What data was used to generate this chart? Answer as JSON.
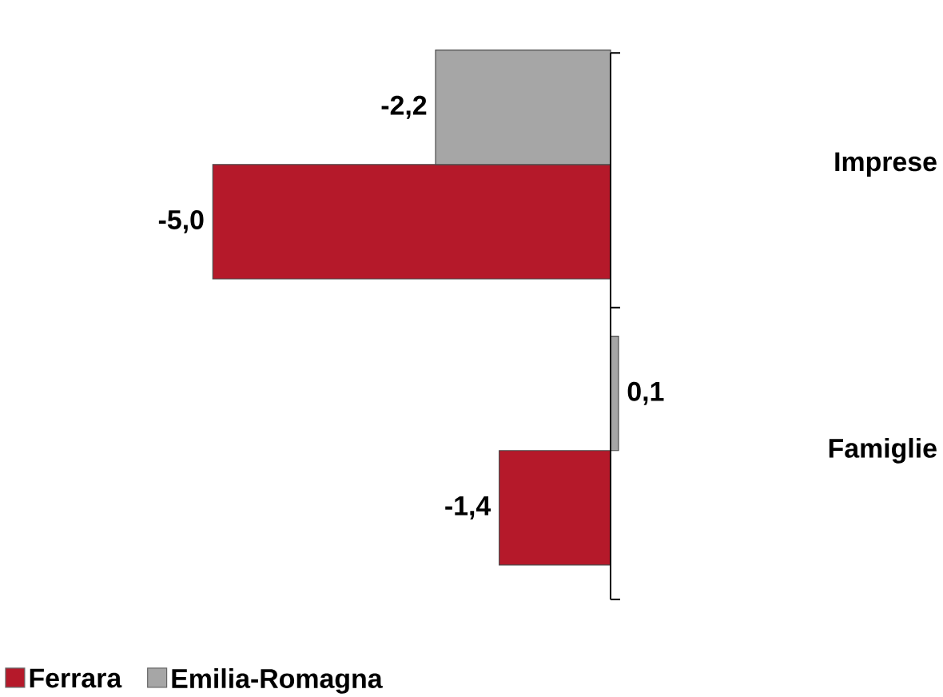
{
  "chart_data": {
    "type": "bar",
    "orientation": "horizontal",
    "categories": [
      "Imprese",
      "Famiglie"
    ],
    "series": [
      {
        "name": "Ferrara",
        "color": "#b5192a",
        "values": [
          -5.0,
          -1.4
        ],
        "value_labels": [
          "-5,0",
          "-1,4"
        ]
      },
      {
        "name": "Emilia-Romagna",
        "color": "#a6a6a6",
        "values": [
          -2.2,
          0.1
        ],
        "value_labels": [
          "-2,2",
          "0,1"
        ]
      }
    ],
    "legend": "bottom left"
  }
}
